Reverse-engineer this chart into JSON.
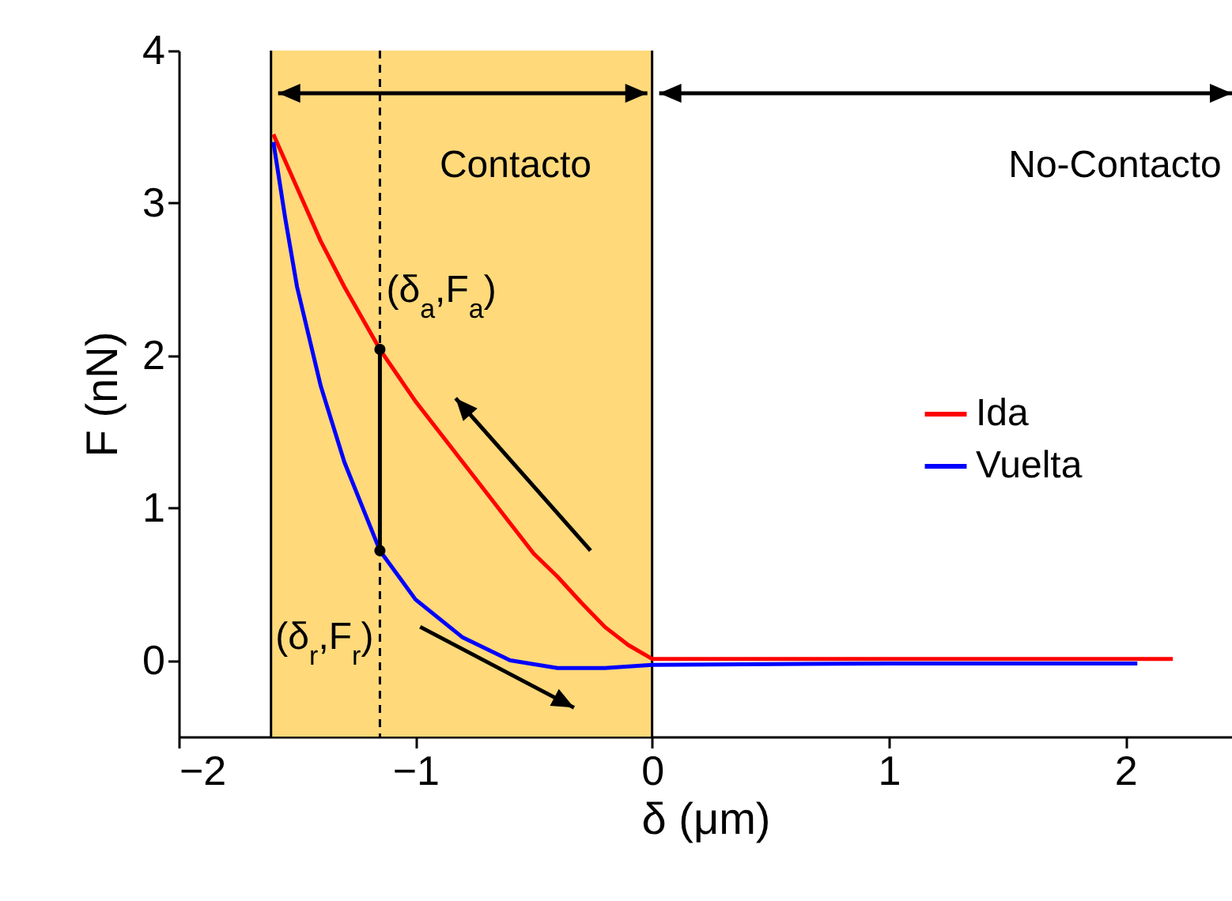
{
  "chart_data": {
    "type": "line",
    "xlabel": "δ (μm)",
    "ylabel": "F (nN)",
    "xlim": [
      -2,
      2.45
    ],
    "ylim": [
      -0.5,
      4
    ],
    "xticks": [
      -2,
      -1,
      0,
      1,
      2
    ],
    "yticks": [
      0,
      1,
      2,
      3,
      4
    ],
    "legend": "right",
    "marker": "none",
    "line_style": "solid",
    "series": [
      {
        "name": "Ida",
        "color": "#ff0000",
        "x": [
          -1.6,
          -1.5,
          -1.4,
          -1.3,
          -1.15,
          -1.0,
          -0.8,
          -0.6,
          -0.5,
          -0.4,
          -0.3,
          -0.2,
          -0.1,
          0,
          0.5,
          1,
          1.5,
          2,
          2.2
        ],
        "values": [
          3.45,
          3.1,
          2.75,
          2.45,
          2.04,
          1.7,
          1.3,
          0.9,
          0.7,
          0.55,
          0.38,
          0.22,
          0.1,
          0.01,
          0.01,
          0.01,
          0.01,
          0.01,
          0.01
        ]
      },
      {
        "name": "Vuelta",
        "color": "#0000ff",
        "x": [
          -1.6,
          -1.55,
          -1.5,
          -1.4,
          -1.3,
          -1.15,
          -1.0,
          -0.8,
          -0.6,
          -0.4,
          -0.2,
          -0.1,
          0,
          1,
          2.05
        ],
        "values": [
          3.4,
          2.9,
          2.45,
          1.8,
          1.3,
          0.72,
          0.4,
          0.15,
          0.0,
          -0.05,
          -0.05,
          -0.04,
          -0.03,
          -0.02,
          -0.02
        ]
      },
      {
        "color": "#000000",
        "marker": "circle",
        "x": [
          -1.15,
          -1.15
        ],
        "values": [
          2.04,
          0.72
        ]
      }
    ],
    "bands": [
      {
        "axis": "x",
        "from": -1.61,
        "to": 0,
        "color": "#ffd97a"
      }
    ],
    "ref_lines": [
      {
        "axis": "x",
        "value": -1.15,
        "color": "#000000",
        "line_style": "dashed"
      },
      {
        "axis": "x",
        "value": -1.61,
        "color": "#000000",
        "line_style": "solid"
      },
      {
        "axis": "x",
        "value": 0,
        "color": "#000000",
        "line_style": "solid"
      }
    ],
    "annotations": [
      {
        "text": "(δ$_{a}$,F$_{a}$)",
        "x": -1.15,
        "y": 2.04
      },
      {
        "text": "(δ$_{r}$,F$_{r}$)",
        "x": -1.15,
        "y": 0.72
      },
      "Contacto",
      "No-Contacto"
    ]
  }
}
